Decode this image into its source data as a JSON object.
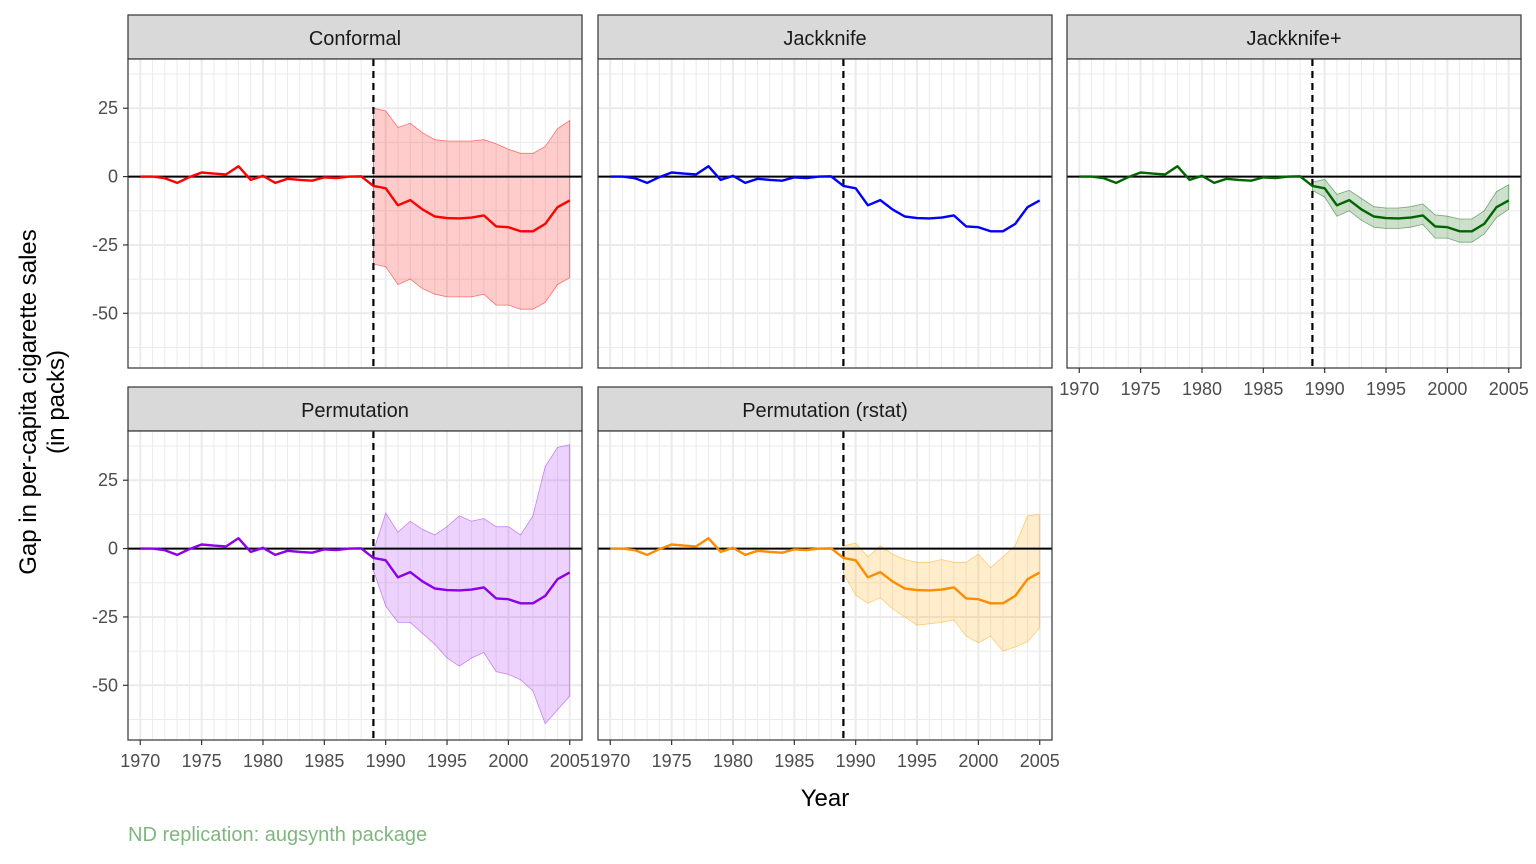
{
  "caption": "ND replication: augsynth package",
  "colors": {
    "caption": "#7fb77e",
    "strip_bg": "#d9d9d9",
    "grid": "#ebebeb",
    "zero_line": "#000000"
  },
  "chart_data": {
    "type": "line",
    "layout": "facet grid, 3 columns x 2 rows",
    "xlabel": "Year",
    "ylabel_lines": [
      "Gap in per-capita cigarette sales",
      "(in packs)"
    ],
    "xlim": [
      1969,
      2006
    ],
    "ylim": [
      -70,
      43
    ],
    "x_ticks": [
      1970,
      1975,
      1980,
      1985,
      1990,
      1995,
      2000,
      2005
    ],
    "y_ticks": [
      25,
      0,
      -25,
      -50
    ],
    "treatment_year": 1989,
    "grid": true,
    "x": [
      1970,
      1971,
      1972,
      1973,
      1974,
      1975,
      1976,
      1977,
      1978,
      1979,
      1980,
      1981,
      1982,
      1983,
      1984,
      1985,
      1986,
      1987,
      1988,
      1989,
      1990,
      1991,
      1992,
      1993,
      1994,
      1995,
      1996,
      1997,
      1998,
      1999,
      2000,
      2001,
      2002,
      2003,
      2004,
      2005
    ],
    "gap": [
      0,
      0,
      -0.6,
      -2.3,
      -0.2,
      1.5,
      1.1,
      0.8,
      3.8,
      -1.2,
      0.3,
      -2.3,
      -0.8,
      -1.2,
      -1.5,
      -0.3,
      -0.5,
      0,
      0.1,
      -3.4,
      -4.3,
      -10.5,
      -8.6,
      -12,
      -14.6,
      -15.2,
      -15.3,
      -15,
      -14.2,
      -18.2,
      -18.5,
      -20,
      -20,
      -17.3,
      -11.2,
      -8.7
    ],
    "panels": [
      {
        "title": "Conformal",
        "color": "#ff0000",
        "band_color": "#ff0000",
        "band_x": [
          1989,
          1990,
          1991,
          1992,
          1993,
          1994,
          1995,
          1996,
          1997,
          1998,
          1999,
          2000,
          2001,
          2002,
          2003,
          2004,
          2005
        ],
        "band_upper": [
          25,
          24,
          18,
          19.5,
          16,
          13.5,
          13,
          13,
          13,
          13.5,
          12,
          10,
          8.5,
          8.5,
          11,
          17.5,
          20.5
        ],
        "band_lower": [
          -32,
          -33,
          -39.5,
          -37.5,
          -41,
          -43,
          -44,
          -44,
          -44,
          -43,
          -47,
          -47,
          -48.5,
          -48.5,
          -46,
          -39.5,
          -37
        ]
      },
      {
        "title": "Jackknife",
        "color": "#0000ff",
        "band_color": null,
        "band_x": [],
        "band_upper": [],
        "band_lower": []
      },
      {
        "title": "Jackknife+",
        "color": "#006400",
        "band_color": "#006400",
        "band_x": [
          1989,
          1990,
          1991,
          1992,
          1993,
          1994,
          1995,
          1996,
          1997,
          1998,
          1999,
          2000,
          2001,
          2002,
          2003,
          2004,
          2005
        ],
        "band_upper": [
          -2,
          -1,
          -6.5,
          -5,
          -8,
          -11,
          -11.5,
          -11.5,
          -11,
          -10,
          -14,
          -14.5,
          -15.5,
          -15.5,
          -12.5,
          -5.5,
          -3
        ],
        "band_lower": [
          -5,
          -7.5,
          -14.5,
          -12.5,
          -16,
          -18.5,
          -19,
          -19,
          -18.5,
          -17.5,
          -22.5,
          -22.5,
          -24,
          -24,
          -21,
          -15,
          -12
        ]
      },
      {
        "title": "Permutation",
        "color": "#8b00e8",
        "band_color": "#a020f0",
        "band_x": [
          1989,
          1990,
          1991,
          1992,
          1993,
          1994,
          1995,
          1996,
          1997,
          1998,
          1999,
          2000,
          2001,
          2002,
          2003,
          2004,
          2005
        ],
        "band_upper": [
          -1,
          13,
          6,
          10,
          7,
          5,
          8,
          12,
          10,
          11,
          8,
          8,
          5,
          12,
          30,
          37,
          38
        ],
        "band_lower": [
          -8,
          -21,
          -27,
          -27,
          -31,
          -35,
          -40,
          -43,
          -40,
          -38,
          -45,
          -46,
          -48,
          -52,
          -64,
          -59,
          -54
        ]
      },
      {
        "title": "Permutation (rstat)",
        "color": "#ff8c00",
        "band_color": "#ffa500",
        "band_x": [
          1989,
          1990,
          1991,
          1992,
          1993,
          1994,
          1995,
          1996,
          1997,
          1998,
          1999,
          2000,
          2001,
          2002,
          2003,
          2004,
          2005
        ],
        "band_upper": [
          1,
          2,
          -3,
          1,
          -2,
          -4,
          -5,
          -5,
          -4,
          -5,
          -5,
          -2,
          -7,
          -3,
          1,
          12,
          12.5
        ],
        "band_lower": [
          -9,
          -17,
          -20,
          -18,
          -22,
          -25,
          -28,
          -27.5,
          -27,
          -26,
          -32,
          -34.5,
          -32,
          -37.5,
          -36,
          -34,
          -29
        ]
      }
    ]
  }
}
